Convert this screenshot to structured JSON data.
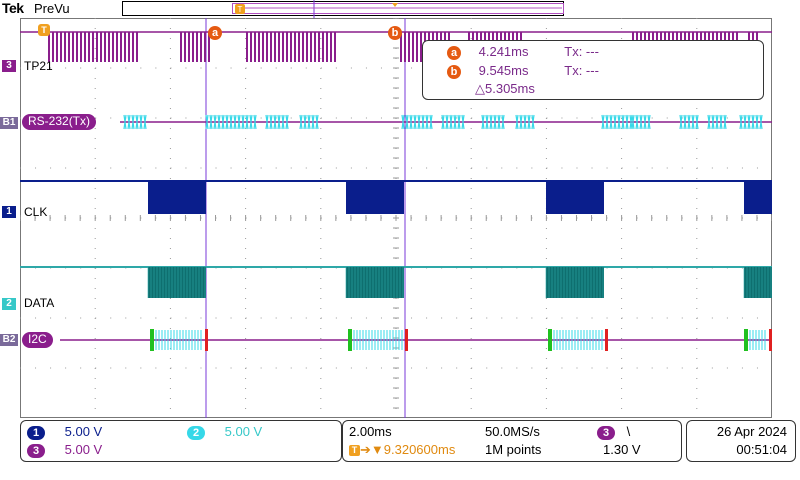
{
  "header": {
    "brand": "Tek",
    "mode": "PreVu"
  },
  "channels": {
    "ch3_tag": "3",
    "ch3_name": "TP21",
    "b1_tag": "B1",
    "b1_bus": "RS-232(Tx)",
    "ch1_tag": "1",
    "ch1_name": "CLK",
    "ch2_tag": "2",
    "ch2_name": "DATA",
    "b2_tag": "B2",
    "b2_bus": "I2C"
  },
  "cursors": {
    "a_label": "a",
    "b_label": "b",
    "a_time": "4.241ms",
    "b_time": "9.545ms",
    "a_tx": "Tx: ---",
    "b_tx": "Tx: ---",
    "delta": "△5.305ms"
  },
  "status": {
    "ch1_num": "1",
    "ch1_scale": "5.00 V",
    "ch2_num": "2",
    "ch2_scale": "5.00 V",
    "ch3_num": "3",
    "ch3_scale": "5.00 V",
    "timebase": "2.00ms",
    "sample_rate": "50.0MS/s",
    "trigger_pos": "▼9.320600ms",
    "record_length": "1M points",
    "trig_source": "3",
    "trig_slope": "\\",
    "trig_level": "1.30 V",
    "date": "26 Apr  2024",
    "time": "00:51:04"
  },
  "colors": {
    "ch1": "#0a1e8c",
    "ch2": "#0e6f6f",
    "ch3": "#8a1e8c",
    "bus": "#36d8e8",
    "cursor": "#7a3ad8",
    "accent": "#e55a12"
  }
}
